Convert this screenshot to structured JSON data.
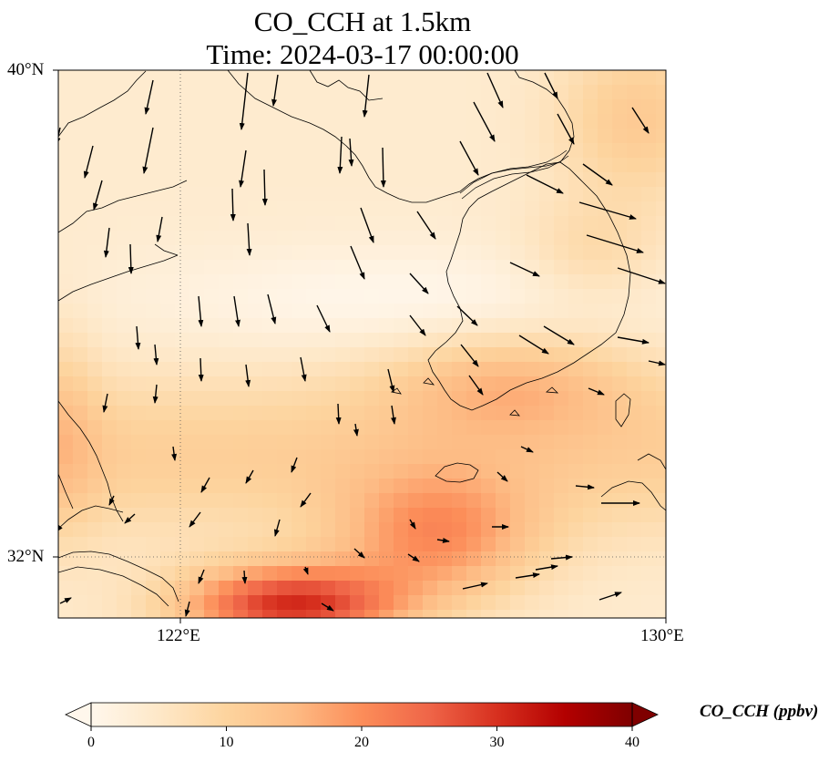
{
  "title": {
    "line1": "CO_CCH at 1.5km",
    "line2": "Time: 2024-03-17 00:00:00"
  },
  "map": {
    "projection": "PlateCarree",
    "extent": {
      "lon_min": 120,
      "lon_max": 130,
      "lat_min": 31,
      "lat_max": 40
    },
    "gridlines": {
      "lon": [
        122
      ],
      "lat": [
        32
      ],
      "style": "dotted"
    },
    "lat_tick_labels": [
      "40°N",
      "32°N"
    ],
    "lon_tick_labels": [
      "122°E",
      "130°E"
    ],
    "wind_vectors": "black arrows over the field; showing generally southward flow over the western sea and southeast to east flow near the Korean peninsula"
  },
  "colorbar": {
    "variable_label": "CO_CCH (ppbv)",
    "colormap": "OrRd",
    "range": [
      0,
      40
    ],
    "extend": "both",
    "tick_labels": [
      "0",
      "10",
      "20",
      "30",
      "40"
    ],
    "colors": [
      "#fff7ec",
      "#fee8c8",
      "#fdd49e",
      "#fdbb84",
      "#fc8d59",
      "#ef6548",
      "#d7301f",
      "#b30000",
      "#7f0000"
    ]
  }
}
